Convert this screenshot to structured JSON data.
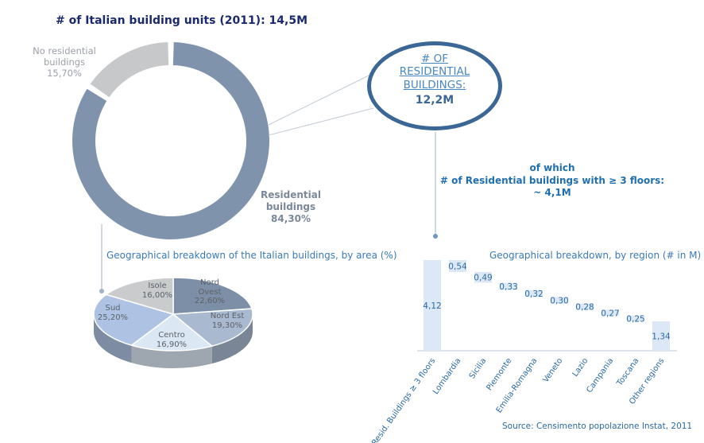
{
  "title": "# of Italian building units (2011): 14,5M",
  "donut": {
    "segments": [
      {
        "label_lines": [
          "Residential",
          "buildings",
          "84,30%"
        ],
        "value": 84.3,
        "color": "#7f93ad"
      },
      {
        "label_lines": [
          "No residential",
          "buildings",
          "15,70%"
        ],
        "value": 15.7,
        "color": "#c6c8ca"
      }
    ]
  },
  "callout": {
    "title_lines": [
      "# OF",
      "RESIDENTIAL",
      "BUILDINGS:"
    ],
    "value": "12,2M"
  },
  "of_which": [
    "of which",
    "# of Residential buildings with ≥ 3 floors:",
    "~ 4,1M"
  ],
  "pie_title": "Geographical breakdown of the Italian buildings, by area (%)",
  "bar_title": "Geographical breakdown, by region (# in M)",
  "source": "Source: Censimento popolazione Instat, 2011",
  "chart_data": [
    {
      "type": "pie",
      "title": "Geographical breakdown of the Italian buildings, by area (%)",
      "categories": [
        "Nord Ovest",
        "Nord Est",
        "Centro",
        "Sud",
        "Isole"
      ],
      "labels": [
        "Nord Ovest\n22,60%",
        "Nord Est\n19,30%",
        "Centro\n16,90%",
        "Sud\n25,20%",
        "Isole\n16,00%"
      ],
      "values": [
        22.6,
        19.3,
        16.9,
        25.2,
        16.0
      ],
      "colors": [
        "#7d8fa6",
        "#a9b9cf",
        "#dce7f4",
        "#aec3e3",
        "#c9cbcd"
      ]
    },
    {
      "type": "bar",
      "subtype": "waterfall",
      "title": "Geographical breakdown, by region (# in M)",
      "categories": [
        "Resid. Buildings ≥ 3 floors",
        "Lombardia",
        "Sicilia",
        "Piemonte",
        "Emilia-Romagna",
        "Veneto",
        "Lazio",
        "Campania",
        "Toscana",
        "Other regions"
      ],
      "values": [
        4.12,
        0.54,
        0.49,
        0.33,
        0.32,
        0.3,
        0.28,
        0.27,
        0.25,
        1.34
      ],
      "value_labels": [
        "4,12",
        "0,54",
        "0,49",
        "0,33",
        "0,32",
        "0,30",
        "0,28",
        "0,27",
        "0,25",
        "1,34"
      ],
      "bar_color": "#dce8f6",
      "label_color": "#2a6aa6"
    }
  ]
}
